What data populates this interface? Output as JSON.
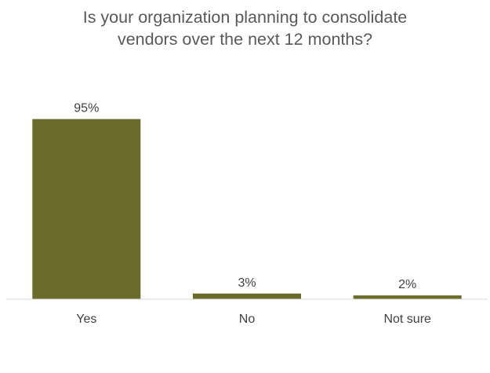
{
  "chart_data": {
    "type": "bar",
    "title_lines": [
      "Is your organization planning to consolidate",
      "vendors over the next 12 months?"
    ],
    "categories": [
      "Yes",
      "No",
      "Not sure"
    ],
    "values": [
      95,
      3,
      2
    ],
    "data_labels": [
      "95%",
      "3%",
      "2%"
    ],
    "unit": "%",
    "ylim": [
      0,
      100
    ],
    "xlabel": "",
    "ylabel": "",
    "grid": false,
    "legend": "none",
    "bar_color": "#6b6b2a",
    "axis_color": "#d9d9d9",
    "label_color": "#404040",
    "title_color": "#595959"
  }
}
